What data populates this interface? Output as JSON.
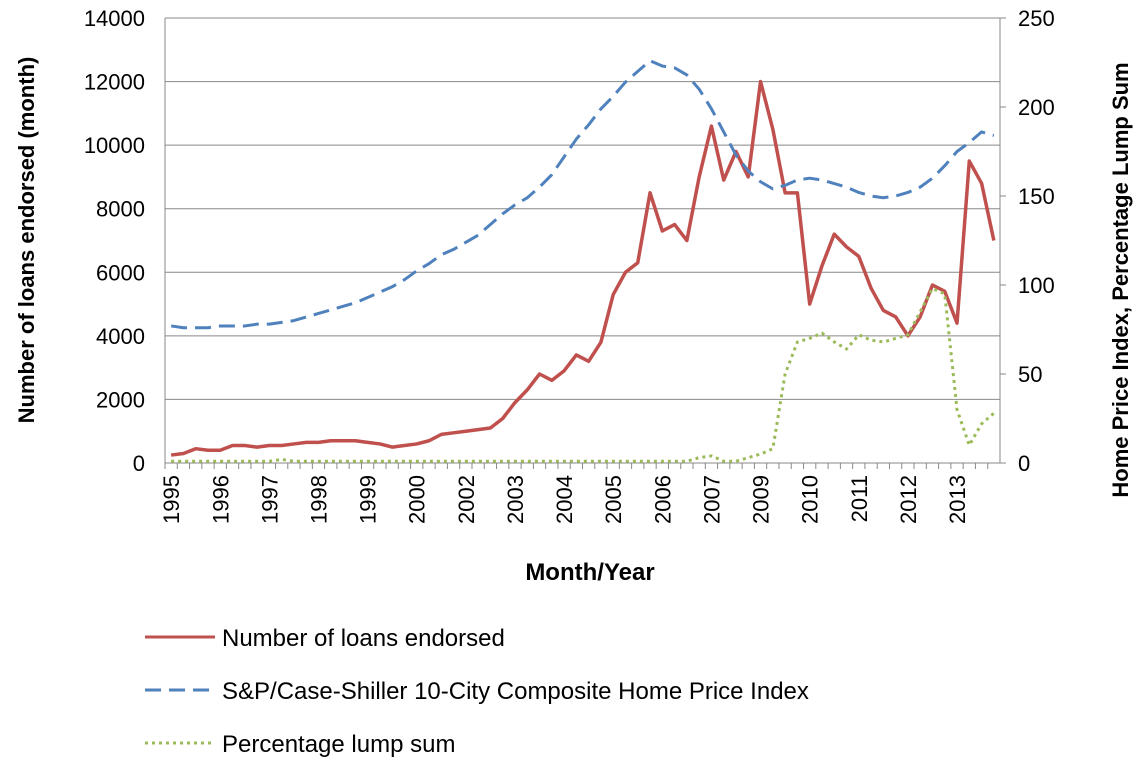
{
  "chart_data": {
    "type": "line",
    "x_label": "Month/Year",
    "y_label": "Number of loans endorsed (month)",
    "y2_label": "Home Price Index, Percentage Lump Sum",
    "categories": [
      "1995",
      null,
      null,
      null,
      "1996",
      null,
      null,
      null,
      "1997",
      null,
      null,
      null,
      "1998",
      null,
      null,
      null,
      "1999",
      null,
      null,
      null,
      "2000",
      null,
      null,
      null,
      "2002",
      null,
      null,
      null,
      "2003",
      null,
      null,
      null,
      "2004",
      null,
      null,
      null,
      "2005",
      null,
      null,
      null,
      "2006",
      null,
      null,
      null,
      "2007",
      null,
      null,
      null,
      "2009",
      null,
      null,
      null,
      "2010",
      null,
      null,
      null,
      "2011",
      null,
      null,
      null,
      "2012",
      null,
      null,
      null,
      "2013",
      null,
      null,
      null
    ],
    "ylim": [
      0,
      14000
    ],
    "yticks": [
      0,
      2000,
      4000,
      6000,
      8000,
      10000,
      12000,
      14000
    ],
    "y2lim": [
      0,
      250
    ],
    "y2ticks": [
      0,
      50,
      100,
      150,
      200,
      250
    ],
    "grid": true,
    "series": [
      {
        "name": "Number of loans endorsed",
        "color": "#c0504d",
        "style": "solid",
        "values": [
          250,
          300,
          450,
          400,
          400,
          550,
          550,
          500,
          550,
          550,
          600,
          650,
          650,
          700,
          700,
          700,
          650,
          600,
          500,
          550,
          600,
          700,
          900,
          950,
          1000,
          1050,
          1100,
          1400,
          1900,
          2300,
          2800,
          2600,
          2900,
          3400,
          3200,
          3800,
          5300,
          6000,
          6300,
          8500,
          7300,
          7500,
          7000,
          9000,
          10600,
          8900,
          9800,
          9000,
          12000,
          10500,
          8500,
          8500,
          5000,
          6200,
          7200,
          6800,
          6500,
          5500,
          4800,
          4600,
          4000,
          4600,
          5600,
          5400,
          4400,
          9500,
          8800,
          7000
        ]
      },
      {
        "name": "S&P/Case-Shiller 10-City Composite Home Price Index",
        "color": "#4f81bd",
        "style": "dashed",
        "axis": "y2",
        "values": [
          77,
          76,
          76,
          76,
          77,
          77,
          77,
          78,
          78,
          79,
          80,
          82,
          84,
          86,
          88,
          90,
          93,
          96,
          99,
          103,
          108,
          112,
          117,
          120,
          124,
          128,
          134,
          140,
          145,
          149,
          155,
          162,
          172,
          182,
          190,
          199,
          206,
          214,
          220,
          226,
          223,
          222,
          218,
          210,
          199,
          186,
          173,
          164,
          158,
          154,
          156,
          159,
          160,
          159,
          157,
          155,
          152,
          150,
          149,
          150,
          152,
          155,
          160,
          167,
          175,
          180,
          186,
          184
        ]
      },
      {
        "name": "Percentage lump sum",
        "color": "#9bbb59",
        "style": "dotted",
        "axis": "y2",
        "values": [
          1,
          1,
          1,
          1,
          1,
          1,
          1,
          1,
          1,
          2,
          1,
          1,
          1,
          1,
          1,
          1,
          1,
          1,
          1,
          1,
          1,
          1,
          1,
          1,
          1,
          1,
          1,
          1,
          1,
          1,
          1,
          1,
          1,
          1,
          1,
          1,
          1,
          1,
          1,
          1,
          1,
          1,
          1,
          3,
          4,
          1,
          1,
          3,
          5,
          8,
          50,
          68,
          70,
          73,
          68,
          64,
          72,
          69,
          68,
          70,
          72,
          85,
          98,
          95,
          30,
          10,
          22,
          28
        ]
      }
    ]
  }
}
